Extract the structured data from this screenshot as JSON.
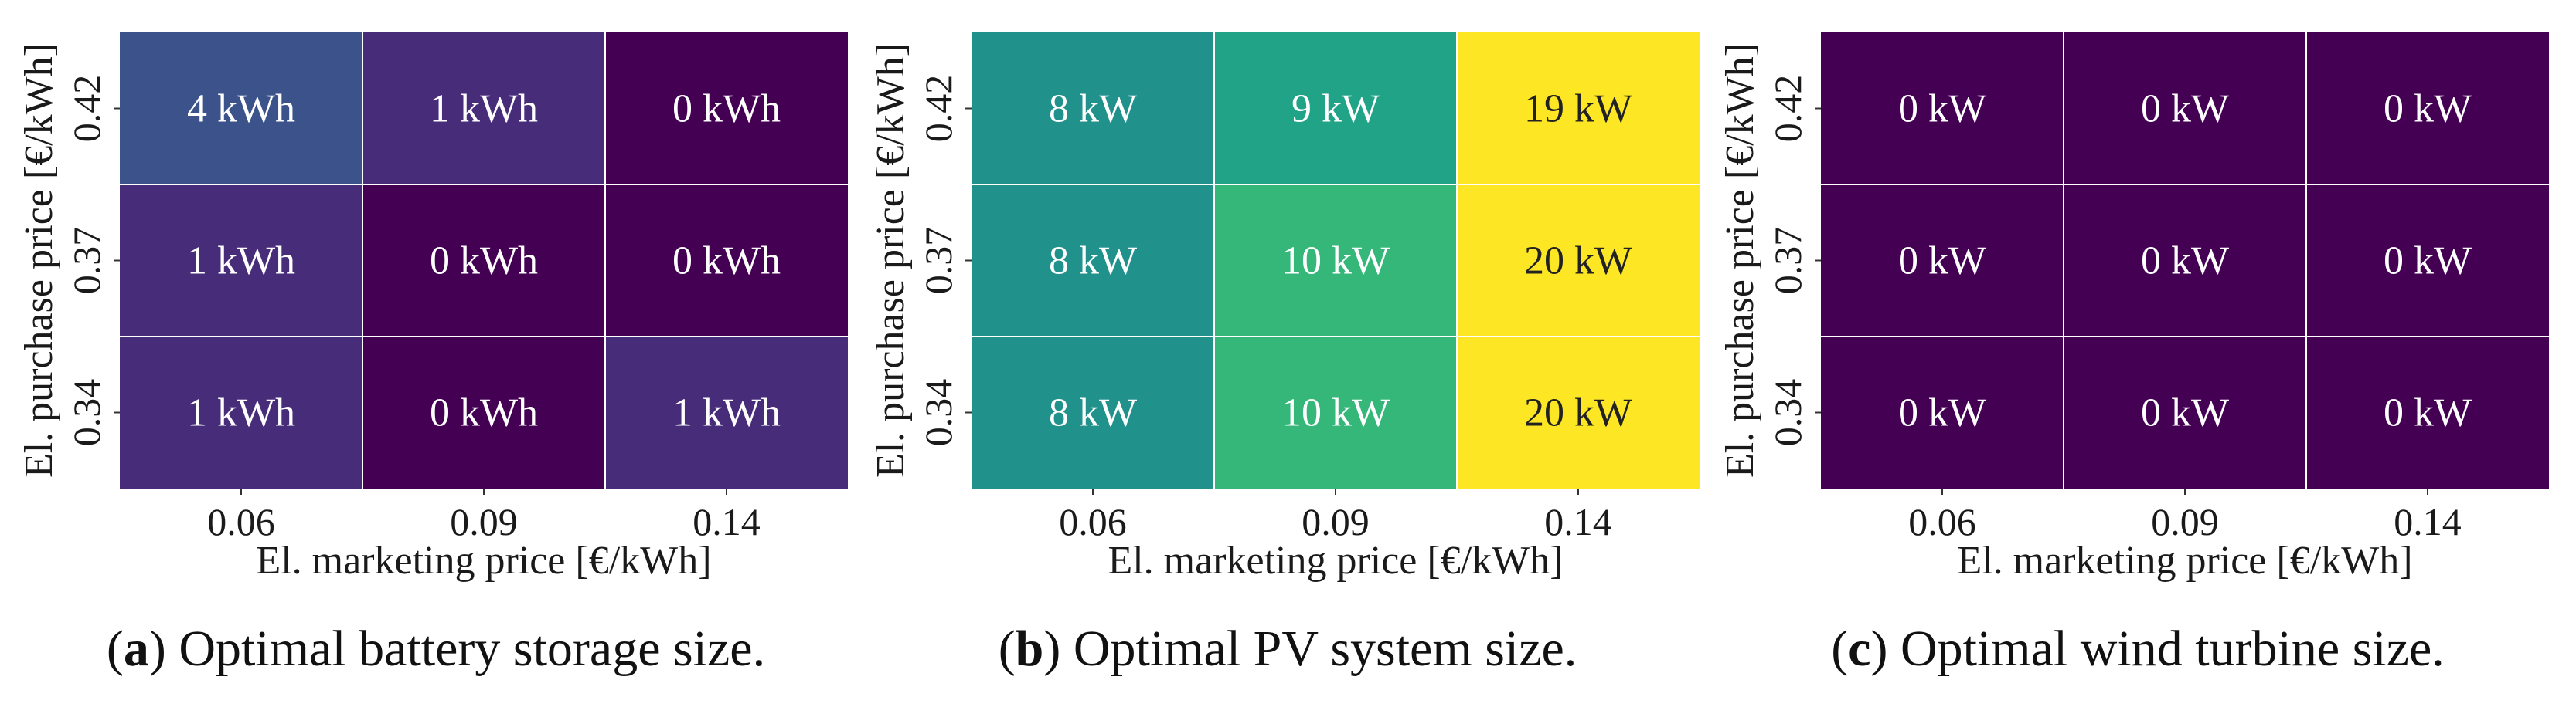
{
  "chart_data": [
    {
      "type": "heatmap",
      "panel": "a",
      "caption_letter": "a",
      "caption_text": "Optimal battery storage size.",
      "xlabel": "El. marketing price [€/kWh]",
      "ylabel": "El. purchase price [€/kWh]",
      "x_categories": [
        "0.06",
        "0.09",
        "0.14"
      ],
      "y_categories": [
        "0.42",
        "0.37",
        "0.34"
      ],
      "unit": "kWh",
      "values": [
        [
          4,
          1,
          0
        ],
        [
          1,
          0,
          0
        ],
        [
          1,
          0,
          1
        ]
      ],
      "colors": [
        [
          "#3b528b",
          "#472c7a",
          "#440154"
        ],
        [
          "#472c7a",
          "#440154",
          "#440154"
        ],
        [
          "#472c7a",
          "#440154",
          "#472c7a"
        ]
      ],
      "label_colors": [
        [
          "#ffffff",
          "#ffffff",
          "#ffffff"
        ],
        [
          "#ffffff",
          "#ffffff",
          "#ffffff"
        ],
        [
          "#ffffff",
          "#ffffff",
          "#ffffff"
        ]
      ]
    },
    {
      "type": "heatmap",
      "panel": "b",
      "caption_letter": "b",
      "caption_text": "Optimal PV system size.",
      "xlabel": "El. marketing price [€/kWh]",
      "ylabel": "El. purchase price [€/kWh]",
      "x_categories": [
        "0.06",
        "0.09",
        "0.14"
      ],
      "y_categories": [
        "0.42",
        "0.37",
        "0.34"
      ],
      "unit": "kW",
      "values": [
        [
          8,
          9,
          19
        ],
        [
          8,
          10,
          20
        ],
        [
          8,
          10,
          20
        ]
      ],
      "colors": [
        [
          "#21918c",
          "#20a386",
          "#fde725"
        ],
        [
          "#21918c",
          "#35b779",
          "#fde725"
        ],
        [
          "#21918c",
          "#35b779",
          "#fde725"
        ]
      ],
      "label_colors": [
        [
          "#ffffff",
          "#ffffff",
          "#222222"
        ],
        [
          "#ffffff",
          "#ffffff",
          "#222222"
        ],
        [
          "#ffffff",
          "#ffffff",
          "#222222"
        ]
      ]
    },
    {
      "type": "heatmap",
      "panel": "c",
      "caption_letter": "c",
      "caption_text": "Optimal wind turbine size.",
      "xlabel": "El. marketing price [€/kWh]",
      "ylabel": "El. purchase price [€/kWh]",
      "x_categories": [
        "0.06",
        "0.09",
        "0.14"
      ],
      "y_categories": [
        "0.42",
        "0.37",
        "0.34"
      ],
      "unit": "kW",
      "values": [
        [
          0,
          0,
          0
        ],
        [
          0,
          0,
          0
        ],
        [
          0,
          0,
          0
        ]
      ],
      "colors": [
        [
          "#440154",
          "#440154",
          "#440154"
        ],
        [
          "#440154",
          "#440154",
          "#440154"
        ],
        [
          "#440154",
          "#440154",
          "#440154"
        ]
      ],
      "label_colors": [
        [
          "#ffffff",
          "#ffffff",
          "#ffffff"
        ],
        [
          "#ffffff",
          "#ffffff",
          "#ffffff"
        ],
        [
          "#ffffff",
          "#ffffff",
          "#ffffff"
        ]
      ]
    }
  ]
}
